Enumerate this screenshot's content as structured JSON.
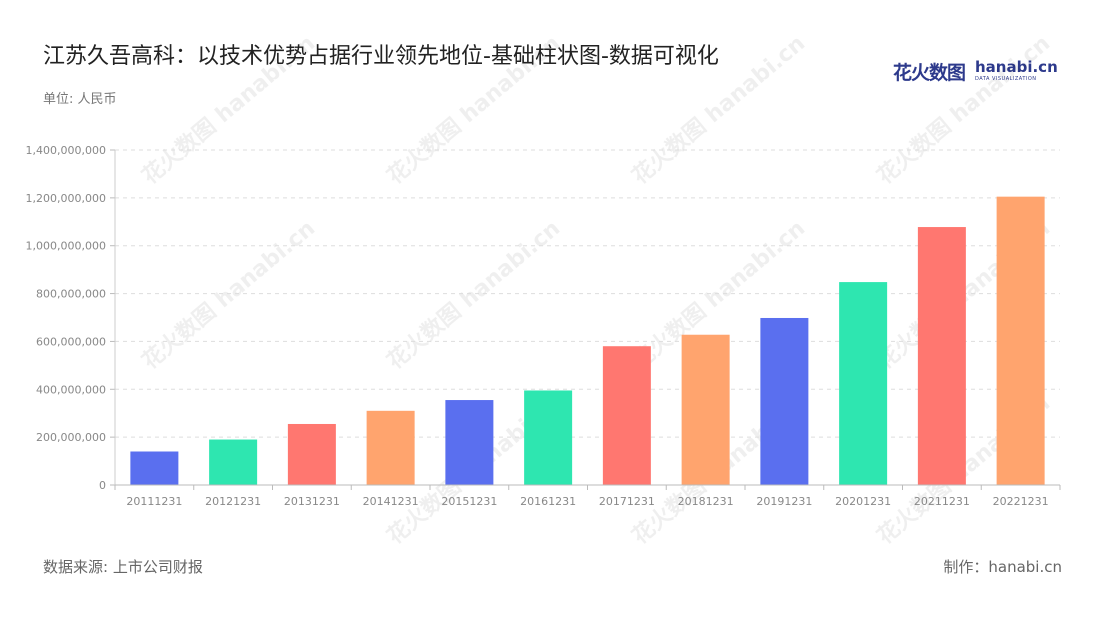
{
  "header": {
    "title": "江苏久吾高科：以技术优势占据行业领先地位-基础柱状图-数据可视化",
    "unit": "单位: 人民币"
  },
  "brand": {
    "name_cn": "花火数图",
    "name_en": "hanabi.cn",
    "tagline": "DATA VISUALIZATION"
  },
  "footer": {
    "source": "数据来源: 上市公司财报",
    "credit": "制作：hanabi.cn"
  },
  "chart_data": {
    "type": "bar",
    "title": "江苏久吾高科：以技术优势占据行业领先地位-基础柱状图-数据可视化",
    "xlabel": "",
    "ylabel": "",
    "categories": [
      "20111231",
      "20121231",
      "20131231",
      "20141231",
      "20151231",
      "20161231",
      "20171231",
      "20181231",
      "20191231",
      "20201231",
      "20211231",
      "20221231"
    ],
    "values": [
      140000000,
      190000000,
      255000000,
      310000000,
      355000000,
      395000000,
      580000000,
      628000000,
      698000000,
      848000000,
      1078000000,
      1205000000
    ],
    "bar_colors": [
      "#5a6fef",
      "#2ee6b0",
      "#ff7770",
      "#ffa46e",
      "#5a6fef",
      "#2ee6b0",
      "#ff7770",
      "#ffa46e",
      "#5a6fef",
      "#2ee6b0",
      "#ff7770",
      "#ffa46e"
    ],
    "ylim": [
      0,
      1400000000
    ],
    "yticks": [
      0,
      200000000,
      400000000,
      600000000,
      800000000,
      1000000000,
      1200000000,
      1400000000
    ],
    "ytick_labels": [
      "0",
      "200,000,000",
      "400,000,000",
      "600,000,000",
      "800,000,000",
      "1,000,000,000",
      "1,200,000,000",
      "1,400,000,000"
    ],
    "grid": true,
    "legend": "none"
  }
}
